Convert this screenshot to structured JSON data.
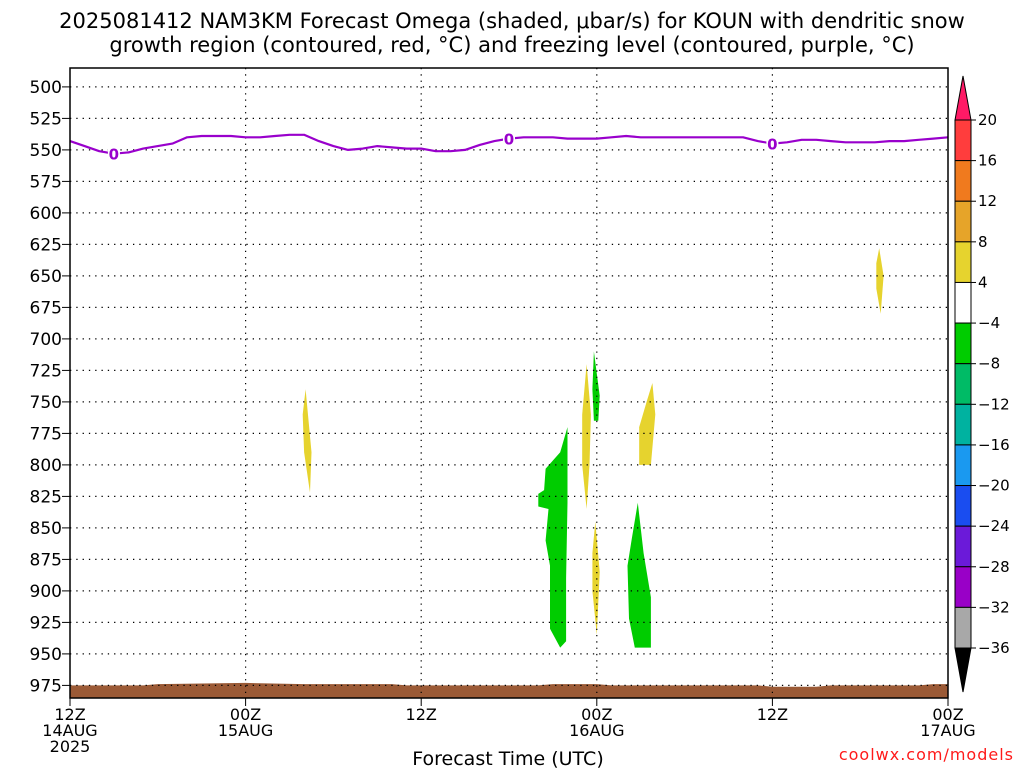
{
  "title_line1": "2025081412 NAM3KM Forecast Omega (shaded, μbar/s) for KOUN with dendritic snow",
  "title_line2": "growth region (contoured, red, °C) and freezing level (contoured, purple, °C)",
  "credit": "coolwx.com/models",
  "chart_data": {
    "type": "heatmap",
    "xlabel": "Forecast Time (UTC)",
    "ylabel": "",
    "x_range_hours": [
      0,
      60
    ],
    "x_ticks": [
      {
        "hour": 0,
        "lines": [
          "12Z",
          "14AUG",
          "2025"
        ]
      },
      {
        "hour": 12,
        "lines": [
          "00Z",
          "15AUG"
        ]
      },
      {
        "hour": 24,
        "lines": [
          "12Z"
        ]
      },
      {
        "hour": 36,
        "lines": [
          "00Z",
          "16AUG"
        ]
      },
      {
        "hour": 48,
        "lines": [
          "12Z"
        ]
      },
      {
        "hour": 60,
        "lines": [
          "00Z",
          "17AUG"
        ]
      }
    ],
    "y_axis": {
      "unit": "hPa",
      "range": [
        485,
        985
      ],
      "reversed": true
    },
    "y_ticks": [
      500,
      525,
      550,
      575,
      600,
      625,
      650,
      675,
      700,
      725,
      750,
      775,
      800,
      825,
      850,
      875,
      900,
      925,
      950,
      975
    ],
    "grid": true,
    "colorbar": {
      "labels": [
        20,
        16,
        12,
        8,
        4,
        -4,
        -8,
        -12,
        -16,
        -20,
        -24,
        -28,
        -32,
        -36
      ],
      "colors": [
        "#ff1a66",
        "#ff3d3d",
        "#f07a1e",
        "#e6a429",
        "#e6d32e",
        "#ffffff",
        "#00cc00",
        "#00bb66",
        "#00b2a0",
        "#1a99f0",
        "#1a4df0",
        "#6b1ad9",
        "#9900c7",
        "#a8a8a8",
        "#000000"
      ]
    },
    "freezing_level": {
      "color": "#9900cc",
      "label": "0",
      "label_hours": [
        3,
        30,
        48
      ],
      "points": [
        [
          0,
          543
        ],
        [
          1,
          547
        ],
        [
          2,
          551
        ],
        [
          3,
          553
        ],
        [
          4,
          552
        ],
        [
          5,
          549
        ],
        [
          6,
          547
        ],
        [
          7,
          545
        ],
        [
          8,
          540
        ],
        [
          9,
          539
        ],
        [
          10,
          539
        ],
        [
          11,
          539
        ],
        [
          12,
          540
        ],
        [
          13,
          540
        ],
        [
          14,
          539
        ],
        [
          15,
          538
        ],
        [
          16,
          538
        ],
        [
          17,
          543
        ],
        [
          18,
          547
        ],
        [
          19,
          550
        ],
        [
          20,
          549
        ],
        [
          21,
          547
        ],
        [
          22,
          548
        ],
        [
          23,
          549
        ],
        [
          24,
          549
        ],
        [
          25,
          551
        ],
        [
          26,
          551
        ],
        [
          27,
          550
        ],
        [
          28,
          546
        ],
        [
          29,
          543
        ],
        [
          30,
          541
        ],
        [
          31,
          540
        ],
        [
          32,
          540
        ],
        [
          33,
          540
        ],
        [
          34,
          541
        ],
        [
          35,
          541
        ],
        [
          36,
          541
        ],
        [
          37,
          540
        ],
        [
          38,
          539
        ],
        [
          39,
          540
        ],
        [
          40,
          540
        ],
        [
          41,
          540
        ],
        [
          42,
          540
        ],
        [
          43,
          540
        ],
        [
          44,
          540
        ],
        [
          45,
          540
        ],
        [
          46,
          540
        ],
        [
          47,
          543
        ],
        [
          48,
          545
        ],
        [
          49,
          544
        ],
        [
          50,
          542
        ],
        [
          51,
          542
        ],
        [
          52,
          543
        ],
        [
          53,
          544
        ],
        [
          54,
          544
        ],
        [
          55,
          544
        ],
        [
          56,
          543
        ],
        [
          57,
          543
        ],
        [
          58,
          542
        ],
        [
          59,
          541
        ],
        [
          60,
          540
        ]
      ]
    },
    "surface_pressure": {
      "color": "#9b5a36",
      "points": [
        [
          0,
          975
        ],
        [
          5,
          975
        ],
        [
          6,
          974
        ],
        [
          12,
          973
        ],
        [
          16,
          974
        ],
        [
          22,
          974
        ],
        [
          23,
          975
        ],
        [
          32,
          975
        ],
        [
          33,
          974
        ],
        [
          36,
          974
        ],
        [
          37,
          975
        ],
        [
          47,
          975
        ],
        [
          48,
          976
        ],
        [
          51,
          976
        ],
        [
          52,
          975
        ],
        [
          58,
          975
        ],
        [
          59,
          974
        ],
        [
          60,
          974
        ]
      ]
    },
    "omega_areas": [
      {
        "sign": "positive",
        "color": "#e6d32e",
        "points": [
          [
            16.1,
            740
          ],
          [
            16.5,
            790
          ],
          [
            16.4,
            822
          ],
          [
            16.0,
            790
          ],
          [
            15.9,
            760
          ]
        ]
      },
      {
        "sign": "negative",
        "color": "#00cc00",
        "points": [
          [
            34.0,
            770
          ],
          [
            33.5,
            790
          ],
          [
            32.5,
            803
          ],
          [
            32.4,
            820
          ],
          [
            32.0,
            823
          ],
          [
            32.0,
            833
          ],
          [
            32.7,
            835
          ],
          [
            32.5,
            860
          ],
          [
            32.8,
            880
          ],
          [
            32.8,
            930
          ],
          [
            33.5,
            945
          ],
          [
            33.9,
            940
          ],
          [
            33.9,
            890
          ],
          [
            34.0,
            830
          ]
        ]
      },
      {
        "sign": "positive",
        "color": "#e6d32e",
        "points": [
          [
            35.3,
            720
          ],
          [
            35.6,
            760
          ],
          [
            35.5,
            800
          ],
          [
            35.3,
            835
          ],
          [
            35.0,
            800
          ],
          [
            35.0,
            760
          ]
        ]
      },
      {
        "sign": "negative",
        "color": "#00cc00",
        "points": [
          [
            35.8,
            710
          ],
          [
            36.2,
            745
          ],
          [
            36.1,
            765
          ],
          [
            35.8,
            765
          ],
          [
            35.7,
            740
          ]
        ]
      },
      {
        "sign": "positive",
        "color": "#e6d32e",
        "points": [
          [
            35.9,
            845
          ],
          [
            36.2,
            885
          ],
          [
            36.0,
            935
          ],
          [
            35.7,
            900
          ],
          [
            35.7,
            870
          ]
        ]
      },
      {
        "sign": "negative",
        "color": "#00cc00",
        "points": [
          [
            38.8,
            830
          ],
          [
            39.2,
            870
          ],
          [
            39.7,
            905
          ],
          [
            39.7,
            945
          ],
          [
            38.6,
            945
          ],
          [
            38.2,
            922
          ],
          [
            38.1,
            880
          ],
          [
            38.4,
            858
          ]
        ]
      },
      {
        "sign": "positive",
        "color": "#e6d32e",
        "points": [
          [
            39.8,
            735
          ],
          [
            40.0,
            760
          ],
          [
            39.7,
            800
          ],
          [
            38.9,
            800
          ],
          [
            38.9,
            770
          ],
          [
            39.4,
            750
          ]
        ]
      },
      {
        "sign": "positive",
        "color": "#e6d32e",
        "points": [
          [
            55.3,
            628
          ],
          [
            55.6,
            650
          ],
          [
            55.4,
            680
          ],
          [
            55.1,
            660
          ],
          [
            55.1,
            640
          ]
        ]
      }
    ]
  }
}
